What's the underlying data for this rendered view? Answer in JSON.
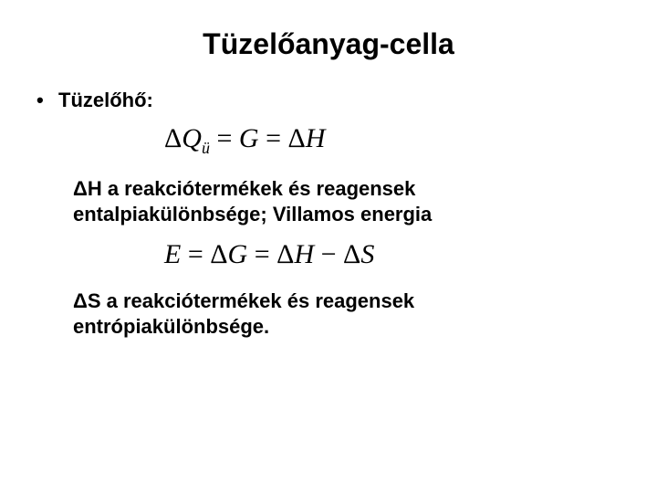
{
  "title": "Tüzelőanyag-cella",
  "bullet": {
    "marker": "•",
    "label": "Tüzelőhő:"
  },
  "eq1": {
    "text_html": "Δ<span class='rm'></span>Q<sub>ü</sub> = G = ΔH",
    "fontsize": 30,
    "font_family": "Times New Roman",
    "font_style": "italic",
    "color": "#000000"
  },
  "paragraph1": "ΔH a reakciótermékek és reagensek entalpiakülönbsége; Villamos energia",
  "eq2": {
    "text_html": "E = ΔG = ΔH − ΔS",
    "fontsize": 30,
    "font_family": "Times New Roman",
    "font_style": "italic",
    "color": "#000000"
  },
  "paragraph2": "ΔS a reakciótermékek és reagensek entrópiakülönbsége.",
  "styles": {
    "background_color": "#ffffff",
    "text_color": "#000000",
    "title_fontsize": 32,
    "body_fontsize": 22,
    "body_font_weight": "bold",
    "body_font_family": "Arial"
  }
}
